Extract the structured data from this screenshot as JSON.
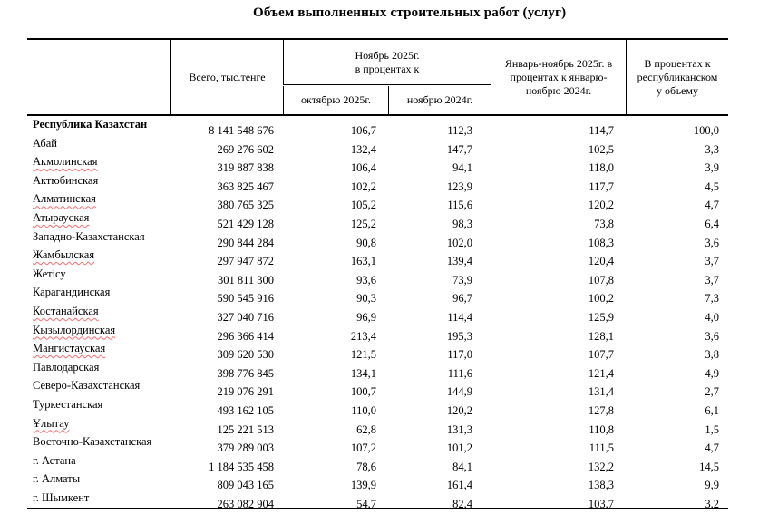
{
  "title": "Объем выполненных строительных работ (услуг)",
  "table": {
    "headers": {
      "region": "",
      "total": "Всего, тыс.тенге",
      "nov_group": "Ноябрь 2025г.\nв процентах к",
      "to_october": "октябрю 2025г.",
      "to_november": "ноябрю 2024г.",
      "jan_nov": "Январь-ноябрь 2025г. в\nпроцентах к январю-\nноябрю 2024г.",
      "republic_share": "В процентах к\nреспубликанском\nу объему"
    },
    "rows": [
      {
        "region": "Республика Казахстан",
        "bold": true,
        "misspelled": false,
        "total": "8 141 548 676",
        "to_oct": "106,7",
        "to_nov": "112,3",
        "jan_nov": "114,7",
        "share": "100,0"
      },
      {
        "region": "Абай",
        "bold": false,
        "misspelled": false,
        "total": "269 276 602",
        "to_oct": "132,4",
        "to_nov": "147,7",
        "jan_nov": "102,5",
        "share": "3,3"
      },
      {
        "region": "Акмолинская",
        "bold": false,
        "misspelled": true,
        "total": "319 887 838",
        "to_oct": "106,4",
        "to_nov": "94,1",
        "jan_nov": "118,0",
        "share": "3,9"
      },
      {
        "region": "Актюбинская",
        "bold": false,
        "misspelled": false,
        "total": "363 825 467",
        "to_oct": "102,2",
        "to_nov": "123,9",
        "jan_nov": "117,7",
        "share": "4,5"
      },
      {
        "region": "Алматинская",
        "bold": false,
        "misspelled": true,
        "total": "380 765 325",
        "to_oct": "105,2",
        "to_nov": "115,6",
        "jan_nov": "120,2",
        "share": "4,7"
      },
      {
        "region": "Атырауская",
        "bold": false,
        "misspelled": true,
        "total": "521 429 128",
        "to_oct": "125,2",
        "to_nov": "98,3",
        "jan_nov": "73,8",
        "share": "6,4"
      },
      {
        "region": "Западно-Казахстанская",
        "bold": false,
        "misspelled": false,
        "total": "290 844 284",
        "to_oct": "90,8",
        "to_nov": "102,0",
        "jan_nov": "108,3",
        "share": "3,6"
      },
      {
        "region": "Жамбылская",
        "bold": false,
        "misspelled": true,
        "total": "297 947 872",
        "to_oct": "163,1",
        "to_nov": "139,4",
        "jan_nov": "120,4",
        "share": "3,7"
      },
      {
        "region": "Жетісу",
        "bold": false,
        "misspelled": false,
        "total": "301 811 300",
        "to_oct": "93,6",
        "to_nov": "73,9",
        "jan_nov": "107,8",
        "share": "3,7"
      },
      {
        "region": "Карагандинская",
        "bold": false,
        "misspelled": false,
        "total": "590 545 916",
        "to_oct": "90,3",
        "to_nov": "96,7",
        "jan_nov": "100,2",
        "share": "7,3"
      },
      {
        "region": "Костанайская",
        "bold": false,
        "misspelled": true,
        "total": "327 040 716",
        "to_oct": "96,9",
        "to_nov": "114,4",
        "jan_nov": "125,9",
        "share": "4,0"
      },
      {
        "region": "Кызылординская",
        "bold": false,
        "misspelled": true,
        "total": "296 366 414",
        "to_oct": "213,4",
        "to_nov": "195,3",
        "jan_nov": "128,1",
        "share": "3,6"
      },
      {
        "region": "Мангистауская",
        "bold": false,
        "misspelled": true,
        "total": "309 620 530",
        "to_oct": "121,5",
        "to_nov": "117,0",
        "jan_nov": "107,7",
        "share": "3,8"
      },
      {
        "region": "Павлодарская",
        "bold": false,
        "misspelled": false,
        "total": "398 776 845",
        "to_oct": "134,1",
        "to_nov": "111,6",
        "jan_nov": "121,4",
        "share": "4,9"
      },
      {
        "region": "Северо-Казахстанская",
        "bold": false,
        "misspelled": false,
        "total": "219 076 291",
        "to_oct": "100,7",
        "to_nov": "144,9",
        "jan_nov": "131,4",
        "share": "2,7"
      },
      {
        "region": "Туркестанская",
        "bold": false,
        "misspelled": false,
        "total": "493 162 105",
        "to_oct": "110,0",
        "to_nov": "120,2",
        "jan_nov": "127,8",
        "share": "6,1"
      },
      {
        "region": "Ұлытау",
        "bold": false,
        "misspelled": true,
        "total": "125 221 513",
        "to_oct": "62,8",
        "to_nov": "131,3",
        "jan_nov": "110,8",
        "share": "1,5"
      },
      {
        "region": "Восточно-Казахстанская",
        "bold": false,
        "misspelled": false,
        "total": "379 289 003",
        "to_oct": "107,2",
        "to_nov": "101,2",
        "jan_nov": "111,5",
        "share": "4,7"
      },
      {
        "region": "г. Астана",
        "bold": false,
        "misspelled": false,
        "total": "1 184 535 458",
        "to_oct": "78,6",
        "to_nov": "84,1",
        "jan_nov": "132,2",
        "share": "14,5"
      },
      {
        "region": "г. Алматы",
        "bold": false,
        "misspelled": false,
        "total": "809 043 165",
        "to_oct": "139,9",
        "to_nov": "161,4",
        "jan_nov": "138,3",
        "share": "9,9"
      },
      {
        "region": "г. Шымкент",
        "bold": false,
        "misspelled": false,
        "total": "263 082 904",
        "to_oct": "54,7",
        "to_nov": "82,4",
        "jan_nov": "103,7",
        "share": "3,2"
      }
    ]
  }
}
